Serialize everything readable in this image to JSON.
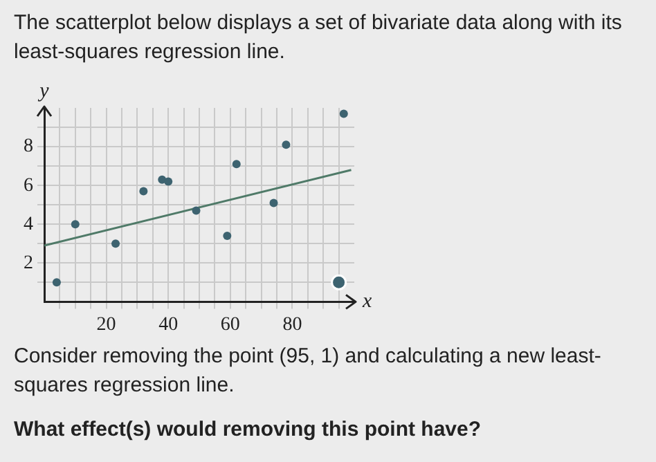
{
  "chart_data": {
    "type": "scatter",
    "title": "The scatterplot below displays a set of bivariate data along with its least-squares regression line.",
    "xlabel": "x",
    "ylabel": "y",
    "series": [
      {
        "color": "#3d6370",
        "x": [
          4,
          10,
          23,
          32,
          38,
          40,
          49,
          59,
          62,
          74,
          78,
          96.6
        ],
        "values": [
          1,
          4,
          3,
          5.7,
          6.3,
          6.2,
          4.7,
          3.4,
          7.1,
          5.1,
          8.1,
          9.7
        ]
      },
      {
        "color": "#3d6370",
        "x": [
          95
        ],
        "values": [
          1
        ]
      },
      {
        "type": "line",
        "color": "#4f7a68",
        "x": [
          0,
          99
        ],
        "values": [
          2.9,
          6.8
        ],
        "marker": "none"
      }
    ],
    "xlim": [
      0,
      100
    ],
    "ylim": [
      0,
      10
    ],
    "xticks": [
      {
        "value": 5,
        "label": null
      },
      {
        "value": 10,
        "label": null
      },
      {
        "value": 15,
        "label": null
      },
      20,
      {
        "value": 25,
        "label": null
      },
      {
        "value": 30,
        "label": null
      },
      {
        "value": 35,
        "label": null
      },
      40,
      {
        "value": 45,
        "label": null
      },
      {
        "value": 50,
        "label": null
      },
      {
        "value": 55,
        "label": null
      },
      60,
      {
        "value": 65,
        "label": null
      },
      {
        "value": 70,
        "label": null
      },
      {
        "value": 75,
        "label": null
      },
      80,
      {
        "value": 85,
        "label": null
      },
      {
        "value": 90,
        "label": null
      },
      {
        "value": 95,
        "label": null
      }
    ],
    "yticks": [
      {
        "value": 1,
        "label": null
      },
      2,
      {
        "value": 3,
        "label": null
      },
      4,
      {
        "value": 5,
        "label": null
      },
      6,
      {
        "value": 7,
        "label": null
      },
      8,
      {
        "value": 9,
        "label": null
      }
    ],
    "grid": true,
    "marker": "circle",
    "legend": false,
    "annotations": [
      "Consider removing the point (95, 1) and calculating a new least-squares regression line.",
      "What effect(s) would removing this point have?"
    ]
  }
}
